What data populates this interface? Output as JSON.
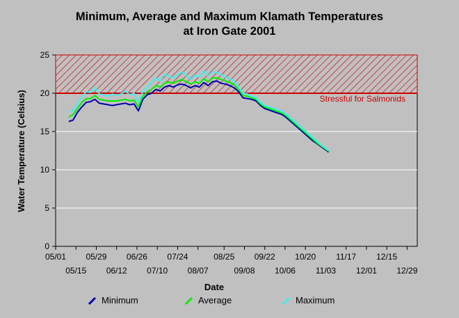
{
  "chart_data": {
    "type": "line",
    "title": "Minimum, Average and Maximum Klamath Temperatures",
    "subtitle": "at Iron Gate 2001",
    "xlabel": "Date",
    "ylabel": "Water Temperature (Celsius)",
    "ylim": [
      0,
      25
    ],
    "yticks": [
      0,
      5,
      10,
      15,
      20,
      25
    ],
    "xlim": [
      "2001-05-01",
      "2002-01-05"
    ],
    "xticks_top": [
      "05/01",
      "05/29",
      "06/26",
      "07/24",
      "08/25",
      "09/22",
      "10/20",
      "11/17",
      "12/15"
    ],
    "xticks_bottom": [
      "05/15",
      "06/12",
      "07/10",
      "08/07",
      "09/08",
      "10/06",
      "11/03",
      "12/01",
      "12/29"
    ],
    "grid": true,
    "threshold": {
      "value": 20,
      "label": "Stressful for Salmonids",
      "band": [
        20,
        25
      ],
      "color": "#cc0000"
    },
    "series": [
      {
        "name": "Minimum",
        "color": "#0000aa",
        "x": [
          "2001-05-10",
          "2001-05-13",
          "2001-05-16",
          "2001-05-19",
          "2001-05-22",
          "2001-05-25",
          "2001-05-28",
          "2001-05-31",
          "2001-06-03",
          "2001-06-06",
          "2001-06-09",
          "2001-06-12",
          "2001-06-15",
          "2001-06-18",
          "2001-06-21",
          "2001-06-24",
          "2001-06-27",
          "2001-06-30",
          "2001-07-03",
          "2001-07-06",
          "2001-07-09",
          "2001-07-12",
          "2001-07-15",
          "2001-07-18",
          "2001-07-21",
          "2001-07-24",
          "2001-07-27",
          "2001-07-30",
          "2001-08-02",
          "2001-08-05",
          "2001-08-08",
          "2001-08-11",
          "2001-08-14",
          "2001-08-17",
          "2001-08-20",
          "2001-08-23",
          "2001-08-26",
          "2001-08-29",
          "2001-09-01",
          "2001-09-04",
          "2001-09-07",
          "2001-09-10",
          "2001-09-13",
          "2001-09-16",
          "2001-09-19",
          "2001-09-22",
          "2001-09-25",
          "2001-09-28",
          "2001-10-01",
          "2001-10-04",
          "2001-10-07",
          "2001-10-10",
          "2001-10-13",
          "2001-10-16",
          "2001-10-19",
          "2001-10-22",
          "2001-10-25",
          "2001-10-28",
          "2001-10-31",
          "2001-11-03",
          "2001-11-05"
        ],
        "values": [
          16.3,
          16.5,
          17.5,
          18.2,
          18.8,
          18.9,
          19.2,
          18.7,
          18.6,
          18.5,
          18.4,
          18.5,
          18.6,
          18.7,
          18.5,
          18.6,
          17.7,
          19.2,
          19.8,
          20.0,
          20.5,
          20.3,
          20.8,
          21.0,
          20.8,
          21.1,
          21.2,
          21.0,
          20.7,
          21.0,
          20.8,
          21.4,
          21.0,
          21.5,
          21.6,
          21.3,
          21.2,
          21.0,
          20.7,
          20.2,
          19.4,
          19.3,
          19.2,
          19.0,
          18.4,
          18.0,
          17.8,
          17.6,
          17.4,
          17.2,
          16.8,
          16.3,
          15.8,
          15.3,
          14.8,
          14.3,
          13.8,
          13.4,
          13.0,
          12.6,
          12.3
        ]
      },
      {
        "name": "Average",
        "color": "#00ee00",
        "x": [
          "2001-05-10",
          "2001-05-13",
          "2001-05-16",
          "2001-05-19",
          "2001-05-22",
          "2001-05-25",
          "2001-05-28",
          "2001-05-31",
          "2001-06-03",
          "2001-06-06",
          "2001-06-09",
          "2001-06-12",
          "2001-06-15",
          "2001-06-18",
          "2001-06-21",
          "2001-06-24",
          "2001-06-27",
          "2001-06-30",
          "2001-07-03",
          "2001-07-06",
          "2001-07-09",
          "2001-07-12",
          "2001-07-15",
          "2001-07-18",
          "2001-07-21",
          "2001-07-24",
          "2001-07-27",
          "2001-07-30",
          "2001-08-02",
          "2001-08-05",
          "2001-08-08",
          "2001-08-11",
          "2001-08-14",
          "2001-08-17",
          "2001-08-20",
          "2001-08-23",
          "2001-08-26",
          "2001-08-29",
          "2001-09-01",
          "2001-09-04",
          "2001-09-07",
          "2001-09-10",
          "2001-09-13",
          "2001-09-16",
          "2001-09-19",
          "2001-09-22",
          "2001-09-25",
          "2001-09-28",
          "2001-10-01",
          "2001-10-04",
          "2001-10-07",
          "2001-10-10",
          "2001-10-13",
          "2001-10-16",
          "2001-10-19",
          "2001-10-22",
          "2001-10-25",
          "2001-10-28",
          "2001-10-31",
          "2001-11-03",
          "2001-11-05"
        ],
        "values": [
          16.9,
          17.2,
          18.0,
          18.8,
          19.3,
          19.3,
          19.7,
          19.2,
          19.1,
          19.0,
          19.0,
          19.0,
          19.1,
          19.2,
          19.0,
          19.1,
          18.2,
          19.6,
          20.2,
          20.5,
          21.0,
          20.8,
          21.3,
          21.5,
          21.3,
          21.6,
          21.8,
          21.5,
          21.2,
          21.5,
          21.3,
          21.9,
          21.5,
          22.0,
          22.0,
          21.8,
          21.6,
          21.4,
          21.1,
          20.5,
          19.7,
          19.6,
          19.4,
          19.2,
          18.6,
          18.2,
          18.0,
          17.8,
          17.6,
          17.4,
          17.0,
          16.5,
          16.0,
          15.5,
          15.0,
          14.5,
          14.0,
          13.5,
          13.1,
          12.7,
          12.4
        ]
      },
      {
        "name": "Maximum",
        "color": "#44eeee",
        "x": [
          "2001-05-10",
          "2001-05-13",
          "2001-05-16",
          "2001-05-19",
          "2001-05-22",
          "2001-05-25",
          "2001-05-28",
          "2001-05-31",
          "2001-06-03",
          "2001-06-06",
          "2001-06-09",
          "2001-06-12",
          "2001-06-15",
          "2001-06-18",
          "2001-06-21",
          "2001-06-24",
          "2001-06-27",
          "2001-06-30",
          "2001-07-03",
          "2001-07-06",
          "2001-07-09",
          "2001-07-12",
          "2001-07-15",
          "2001-07-18",
          "2001-07-21",
          "2001-07-24",
          "2001-07-27",
          "2001-07-30",
          "2001-08-02",
          "2001-08-05",
          "2001-08-08",
          "2001-08-11",
          "2001-08-14",
          "2001-08-17",
          "2001-08-20",
          "2001-08-23",
          "2001-08-26",
          "2001-08-29",
          "2001-09-01",
          "2001-09-04",
          "2001-09-07",
          "2001-09-10",
          "2001-09-13",
          "2001-09-16",
          "2001-09-19",
          "2001-09-22",
          "2001-09-25",
          "2001-09-28",
          "2001-10-01",
          "2001-10-04",
          "2001-10-07",
          "2001-10-10",
          "2001-10-13",
          "2001-10-16",
          "2001-10-19",
          "2001-10-22",
          "2001-10-25",
          "2001-10-28",
          "2001-10-31",
          "2001-11-03",
          "2001-11-05"
        ],
        "values": [
          17.5,
          17.8,
          18.6,
          19.5,
          20.2,
          20.1,
          20.8,
          19.9,
          19.8,
          19.6,
          19.9,
          19.7,
          19.9,
          20.3,
          19.8,
          20.0,
          18.8,
          20.2,
          20.8,
          21.4,
          22.0,
          21.6,
          22.5,
          22.2,
          22.0,
          22.4,
          22.8,
          22.3,
          21.8,
          22.4,
          22.1,
          22.9,
          22.3,
          22.8,
          22.7,
          22.4,
          22.1,
          21.9,
          21.5,
          20.8,
          20.0,
          19.9,
          19.6,
          19.4,
          18.8,
          18.4,
          18.2,
          18.0,
          17.8,
          17.6,
          17.2,
          16.7,
          16.2,
          15.7,
          15.2,
          14.7,
          14.2,
          13.7,
          13.2,
          12.8,
          12.5
        ]
      }
    ]
  }
}
